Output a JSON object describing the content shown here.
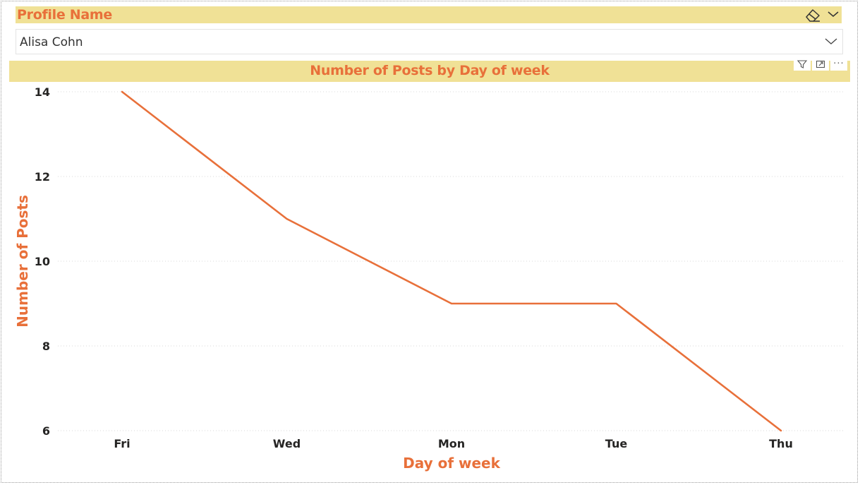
{
  "slicer": {
    "title": "Profile Name",
    "selected_value": "Alisa Cohn",
    "icons": {
      "clear": "eraser-icon",
      "collapse": "chevron-down-icon",
      "dropdown": "chevron-down-icon"
    }
  },
  "visual_header": {
    "icons": [
      "filter-icon",
      "focus-mode-icon",
      "more-options-icon"
    ],
    "more_label": "···"
  },
  "chart_data": {
    "type": "line",
    "title": "Number of Posts by Day of week",
    "xlabel": "Day of week",
    "ylabel": "Number of Posts",
    "categories": [
      "Fri",
      "Wed",
      "Mon",
      "Tue",
      "Thu"
    ],
    "series": [
      {
        "values": [
          14,
          11,
          9,
          9,
          6
        ]
      }
    ],
    "ylim": [
      6,
      14
    ],
    "yticks": [
      6,
      8,
      10,
      12,
      14
    ],
    "grid": true,
    "legend": "none",
    "line_color": "#e8703a",
    "grid_color": "#d9d9d9"
  }
}
